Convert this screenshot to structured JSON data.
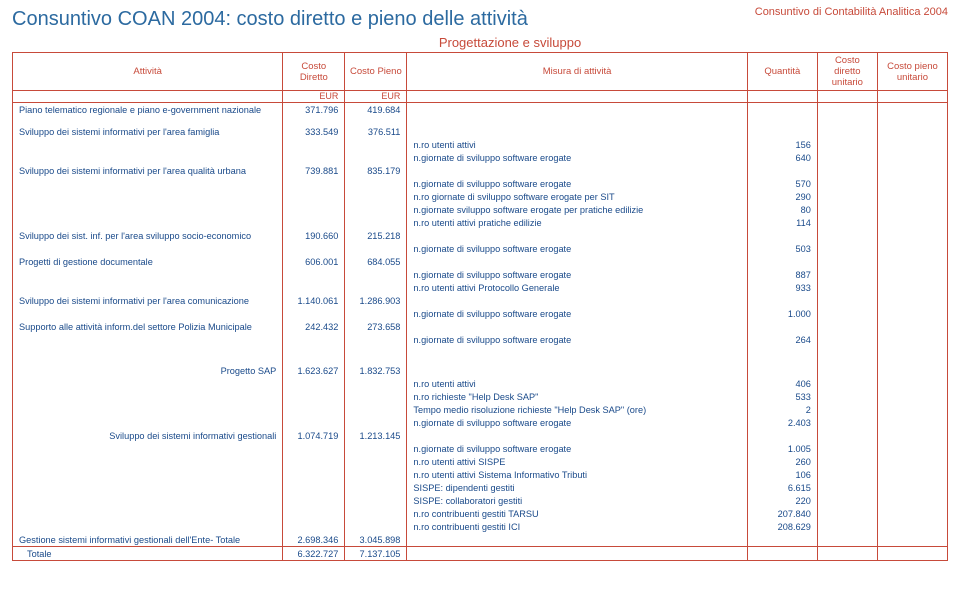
{
  "colors": {
    "border": "#c74a3a",
    "text_accent": "#c74a3a",
    "text_body": "#1a4a8a",
    "title": "#2c6aa0",
    "background": "#ffffff"
  },
  "doc_label": "Consuntivo di Contabilità Analitica 2004",
  "title": "Consuntivo  COAN 2004: costo diretto e pieno delle attività",
  "subtitle": "Progettazione e sviluppo",
  "columns": {
    "activity": "Attività",
    "costo_diretto": "Costo Diretto",
    "costo_pieno": "Costo Pieno",
    "misura": "Misura di attività",
    "quantita": "Quantità",
    "cdu": "Costo diretto unitario",
    "cpu": "Costo pieno unitario",
    "eur": "EUR"
  },
  "rows": [
    {
      "a": "Piano telematico regionale e piano e-government nazionale",
      "cd": "371.796",
      "cp": "419.684"
    },
    {
      "spacer": true
    },
    {
      "a": "Sviluppo dei sistemi informativi per l'area famiglia",
      "cd": "333.549",
      "cp": "376.511"
    },
    {
      "m": "n.ro utenti attivi",
      "q": "156"
    },
    {
      "m": "n.giornate di sviluppo software erogate",
      "q": "640"
    },
    {
      "a": "Sviluppo dei sistemi informativi per l'area qualità urbana",
      "cd": "739.881",
      "cp": "835.179"
    },
    {
      "m": "n.giornate di sviluppo software erogate",
      "q": "570"
    },
    {
      "m": "n.ro giornate di sviluppo software erogate per SIT",
      "q": "290"
    },
    {
      "m": "n.giornate sviluppo software erogate per pratiche edilizie",
      "q": "80"
    },
    {
      "m": "n.ro utenti attivi pratiche edilizie",
      "q": "114"
    },
    {
      "a": "Sviluppo dei sist. inf. per l'area sviluppo socio-economico",
      "cd": "190.660",
      "cp": "215.218"
    },
    {
      "m": "n.giornate di sviluppo software erogate",
      "q": "503"
    },
    {
      "a": "Progetti di gestione documentale",
      "cd": "606.001",
      "cp": "684.055"
    },
    {
      "m": "n.giornate di sviluppo software erogate",
      "q": "887"
    },
    {
      "m": "n.ro utenti attivi Protocollo Generale",
      "q": "933"
    },
    {
      "a": "Sviluppo dei sistemi informativi per l'area comunicazione",
      "cd": "1.140.061",
      "cp": "1.286.903"
    },
    {
      "m": "n.giornate di sviluppo software erogate",
      "q": "1.000"
    },
    {
      "a": "Supporto alle attività inform.del settore Polizia Municipale",
      "cd": "242.432",
      "cp": "273.658"
    },
    {
      "m": "n.giornate di sviluppo software erogate",
      "q": "264"
    },
    {
      "spacer": true
    },
    {
      "spacer": true
    },
    {
      "a_right": "Progetto SAP",
      "cd": "1.623.627",
      "cp": "1.832.753"
    },
    {
      "m": "n.ro utenti attivi",
      "q": "406"
    },
    {
      "m": "n.ro richieste \"Help Desk SAP\"",
      "q": "533"
    },
    {
      "m": "Tempo medio risoluzione richieste \"Help Desk SAP\" (ore)",
      "q": "2"
    },
    {
      "m": "n.giornate di sviluppo software erogate",
      "q": "2.403"
    },
    {
      "a_right": "Sviluppo dei sistemi informativi gestionali",
      "cd": "1.074.719",
      "cp": "1.213.145"
    },
    {
      "m": "n.giornate di sviluppo software erogate",
      "q": "1.005"
    },
    {
      "m": "n.ro utenti attivi SISPE",
      "q": "260"
    },
    {
      "m": "n.ro utenti attivi Sistema Informativo Tributi",
      "q": "106"
    },
    {
      "m": "SISPE: dipendenti gestiti",
      "q": "6.615"
    },
    {
      "m": "SISPE: collaboratori gestiti",
      "q": "220"
    },
    {
      "m": "n.ro contribuenti gestiti TARSU",
      "q": "207.840"
    },
    {
      "m": "n.ro contribuenti gestiti ICI",
      "q": "208.629"
    },
    {
      "a": "Gestione sistemi  informativi  gestionali dell'Ente- Totale",
      "cd": "2.698.346",
      "cp": "3.045.898",
      "pretotal": true
    }
  ],
  "total": {
    "label": "Totale",
    "cd": "6.322.727",
    "cp": "7.137.105"
  }
}
